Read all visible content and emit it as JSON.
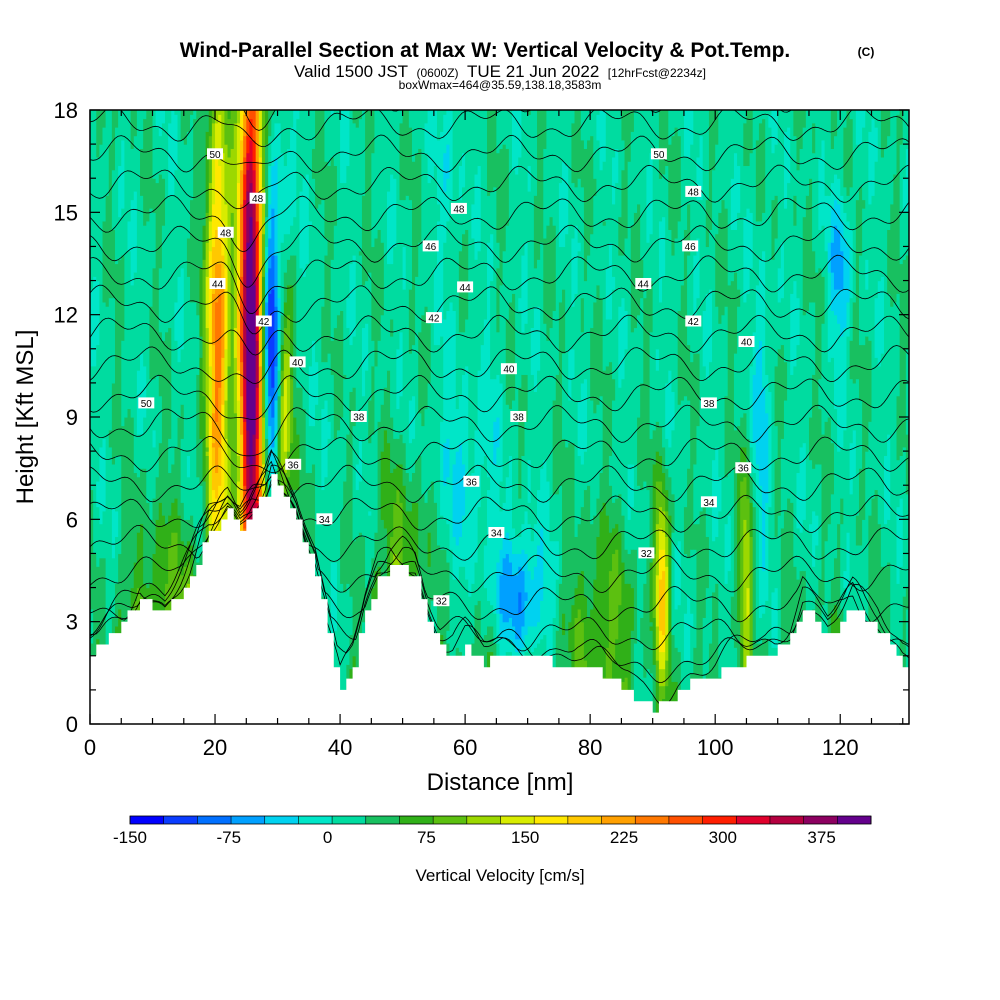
{
  "chart_data": {
    "type": "heatmap",
    "title": "Wind-Parallel Section at Max W: Vertical Velocity & Pot.Temp.",
    "title_mark": "(C)",
    "subtitle_parts": [
      "Valid 1500 JST",
      "(0600Z)",
      "TUE 21 Jun 2022",
      "[12hrFcst@2234z]"
    ],
    "note": "boxWmax=464@35.59,138.18,3583m",
    "xlabel": "Distance [nm]",
    "ylabel": "Height [Kft MSL]",
    "xlim": [
      0,
      131
    ],
    "ylim": [
      0,
      18
    ],
    "xticks": [
      0,
      20,
      40,
      60,
      80,
      100,
      120
    ],
    "yticks": [
      0,
      3,
      6,
      9,
      12,
      15,
      18
    ],
    "colorbar": {
      "label": "Vertical Velocity [cm/s]",
      "tick_labels": [
        "-150",
        "-75",
        "0",
        "75",
        "150",
        "225",
        "300",
        "375"
      ],
      "tick_values": [
        -150,
        -75,
        0,
        75,
        150,
        225,
        300,
        375
      ],
      "range": [
        -150,
        412.5
      ],
      "colors": [
        "#0000ff",
        "#0a3cff",
        "#0070ff",
        "#00a0ff",
        "#00d2f0",
        "#00e6c8",
        "#00dca0",
        "#18c060",
        "#30b018",
        "#5cc010",
        "#9cd800",
        "#d8ec00",
        "#ffe800",
        "#ffc800",
        "#ffa000",
        "#ff7800",
        "#ff5000",
        "#ff1e00",
        "#e0002c",
        "#b40040",
        "#8c0060",
        "#64008c"
      ]
    },
    "background_value": 20,
    "updrafts": [
      {
        "x": 25.8,
        "yc": 11.5,
        "peak": 420,
        "sx": 1.4,
        "sy": 7.0
      },
      {
        "x": 20.5,
        "yc": 11.5,
        "peak": 230,
        "sx": 1.3,
        "sy": 5.0
      },
      {
        "x": 31.0,
        "yc": 9.5,
        "peak": 140,
        "sx": 1.0,
        "sy": 2.5
      },
      {
        "x": 91.5,
        "yc": 4.0,
        "peak": 170,
        "sx": 0.8,
        "sy": 2.0
      },
      {
        "x": 105.0,
        "yc": 4.5,
        "peak": 110,
        "sx": 0.8,
        "sy": 2.0
      },
      {
        "x": 12.0,
        "yc": 3.0,
        "peak": 60,
        "sx": 4.0,
        "sy": 2.5
      },
      {
        "x": 50.0,
        "yc": 5.0,
        "peak": 60,
        "sx": 3.0,
        "sy": 2.0
      },
      {
        "x": 82.0,
        "yc": 3.0,
        "peak": 65,
        "sx": 4.0,
        "sy": 2.0
      }
    ],
    "downdrafts": [
      {
        "x": 29.0,
        "yc": 10.5,
        "peak": -160,
        "sx": 1.1,
        "sy": 2.4
      },
      {
        "x": 29.5,
        "yc": 14.5,
        "peak": -60,
        "sx": 2.0,
        "sy": 2.5
      },
      {
        "x": 69.0,
        "yc": 3.8,
        "peak": -90,
        "sx": 3.0,
        "sy": 1.3
      },
      {
        "x": 120.0,
        "yc": 13.3,
        "peak": -75,
        "sx": 1.2,
        "sy": 1.6
      },
      {
        "x": 107.5,
        "yc": 9.0,
        "peak": -55,
        "sx": 1.0,
        "sy": 3.0
      },
      {
        "x": 60.0,
        "yc": 7.5,
        "peak": -40,
        "sx": 4.0,
        "sy": 2.0
      },
      {
        "x": 57.5,
        "yc": 16.5,
        "peak": -40,
        "sx": 1.2,
        "sy": 2.0
      }
    ],
    "terrain_x": [
      0,
      4,
      8,
      12,
      16,
      19,
      22,
      24,
      26,
      28,
      29,
      31,
      33,
      36,
      38,
      40,
      42,
      44,
      46,
      48,
      50,
      52,
      54,
      56,
      58,
      60,
      63,
      66,
      70,
      74,
      78,
      82,
      86,
      88,
      90,
      92,
      94,
      96,
      100,
      104,
      108,
      112,
      114,
      116,
      118,
      120,
      122,
      124,
      126,
      128,
      130,
      131
    ],
    "terrain_y": [
      2.0,
      2.8,
      3.6,
      3.2,
      4.4,
      5.6,
      6.2,
      5.8,
      6.4,
      6.8,
      7.2,
      6.6,
      6.0,
      4.4,
      2.6,
      1.0,
      1.8,
      3.2,
      4.2,
      4.6,
      4.6,
      4.2,
      3.0,
      2.2,
      2.0,
      2.2,
      1.8,
      2.0,
      2.0,
      1.8,
      1.8,
      1.4,
      1.0,
      0.6,
      0.4,
      0.6,
      1.0,
      1.2,
      1.4,
      1.8,
      2.0,
      2.6,
      3.4,
      3.0,
      2.6,
      3.0,
      3.4,
      3.0,
      2.8,
      2.2,
      1.8,
      1.8
    ],
    "theta_levels": [
      32,
      33,
      34,
      35,
      36,
      37,
      38,
      39,
      40,
      41,
      42,
      43,
      44,
      45,
      46,
      47,
      48,
      49,
      50,
      51,
      52
    ],
    "theta_label_values": [
      "50",
      "48",
      "48",
      "44",
      "42",
      "40",
      "38",
      "38",
      "36",
      "34",
      "46",
      "48",
      "44",
      "42",
      "40",
      "38",
      "36",
      "34",
      "32",
      "50",
      "48",
      "46",
      "44",
      "42",
      "40",
      "38",
      "36",
      "34",
      "32"
    ],
    "theta_labels": [
      {
        "x": 9,
        "y": 9.4,
        "v": 0
      },
      {
        "x": 20,
        "y": 16.7,
        "v": 0
      },
      {
        "x": 26.8,
        "y": 15.4,
        "v": 1
      },
      {
        "x": 21.7,
        "y": 14.4,
        "v": 2
      },
      {
        "x": 20.4,
        "y": 12.9,
        "v": 3
      },
      {
        "x": 27.8,
        "y": 11.8,
        "v": 4
      },
      {
        "x": 33.2,
        "y": 10.6,
        "v": 5
      },
      {
        "x": 43.0,
        "y": 9.0,
        "v": 6
      },
      {
        "x": 32.5,
        "y": 7.6,
        "v": 8
      },
      {
        "x": 37.5,
        "y": 6.0,
        "v": 9
      },
      {
        "x": 54.5,
        "y": 14.0,
        "v": 10
      },
      {
        "x": 59.0,
        "y": 15.1,
        "v": 11
      },
      {
        "x": 60.0,
        "y": 12.8,
        "v": 12
      },
      {
        "x": 55.0,
        "y": 11.9,
        "v": 13
      },
      {
        "x": 67.0,
        "y": 10.4,
        "v": 14
      },
      {
        "x": 68.5,
        "y": 9.0,
        "v": 15
      },
      {
        "x": 61.0,
        "y": 7.1,
        "v": 16
      },
      {
        "x": 65.0,
        "y": 5.6,
        "v": 17
      },
      {
        "x": 56.2,
        "y": 3.6,
        "v": 18
      },
      {
        "x": 91.0,
        "y": 16.7,
        "v": 19
      },
      {
        "x": 96.5,
        "y": 15.6,
        "v": 20
      },
      {
        "x": 96.0,
        "y": 14.0,
        "v": 21
      },
      {
        "x": 88.5,
        "y": 12.9,
        "v": 22
      },
      {
        "x": 96.5,
        "y": 11.8,
        "v": 23
      },
      {
        "x": 105.0,
        "y": 11.2,
        "v": 24
      },
      {
        "x": 99.0,
        "y": 9.4,
        "v": 25
      },
      {
        "x": 104.5,
        "y": 7.5,
        "v": 26
      },
      {
        "x": 99.0,
        "y": 6.5,
        "v": 27
      },
      {
        "x": 89.0,
        "y": 5.0,
        "v": 28
      }
    ]
  }
}
